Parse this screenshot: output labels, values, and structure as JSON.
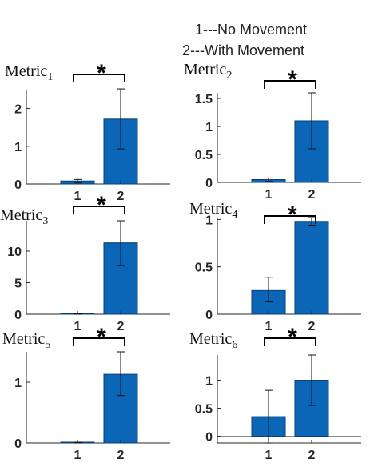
{
  "legend": {
    "line1": "1---No Movement",
    "line2": "2---With Movement"
  },
  "chart_data": [
    {
      "type": "bar",
      "title": "Metric",
      "title_sub": "1",
      "categories": [
        "1",
        "2"
      ],
      "values": [
        0.08,
        1.72
      ],
      "err_low": [
        0.03,
        0.93
      ],
      "err_high": [
        0.12,
        2.52
      ],
      "ylim": [
        0,
        2.5
      ],
      "yticks": [
        0,
        1,
        2
      ],
      "significance": "*"
    },
    {
      "type": "bar",
      "title": "Metric",
      "title_sub": "2",
      "categories": [
        "1",
        "2"
      ],
      "values": [
        0.05,
        1.1
      ],
      "err_low": [
        0.02,
        0.6
      ],
      "err_high": [
        0.08,
        1.6
      ],
      "ylim": [
        0,
        1.6
      ],
      "yticks": [
        0,
        0.5,
        1,
        1.5
      ],
      "significance": "*"
    },
    {
      "type": "bar",
      "title": "Metric",
      "title_sub": "3",
      "categories": [
        "1",
        "2"
      ],
      "values": [
        0.05,
        11.3
      ],
      "err_low": [
        0.0,
        7.7
      ],
      "err_high": [
        0.1,
        14.8
      ],
      "ylim": [
        0,
        14.8
      ],
      "yticks": [
        0,
        5,
        10
      ],
      "significance": "*"
    },
    {
      "type": "bar",
      "title": "Metric",
      "title_sub": "4",
      "categories": [
        "1",
        "2"
      ],
      "values": [
        0.25,
        0.98
      ],
      "err_low": [
        0.13,
        0.94
      ],
      "err_high": [
        0.39,
        1.02
      ],
      "ylim": [
        0,
        1.02
      ],
      "yticks": [
        0,
        0.5,
        1
      ],
      "significance": "*"
    },
    {
      "type": "bar",
      "title": "Metric",
      "title_sub": "5",
      "categories": [
        "1",
        "2"
      ],
      "values": [
        0.005,
        1.13
      ],
      "err_low": [
        0.0,
        0.78
      ],
      "err_high": [
        0.01,
        1.5
      ],
      "ylim": [
        0,
        1.5
      ],
      "yticks": [
        0,
        1
      ],
      "significance": "*"
    },
    {
      "type": "bar",
      "title": "Metric",
      "title_sub": "6",
      "categories": [
        "1",
        "2"
      ],
      "values": [
        0.35,
        1.0
      ],
      "err_low": [
        -0.12,
        0.55
      ],
      "err_high": [
        0.82,
        1.45
      ],
      "ylim": [
        -0.12,
        1.45
      ],
      "yticks": [
        0,
        0.5,
        1
      ],
      "significance": "*"
    }
  ]
}
